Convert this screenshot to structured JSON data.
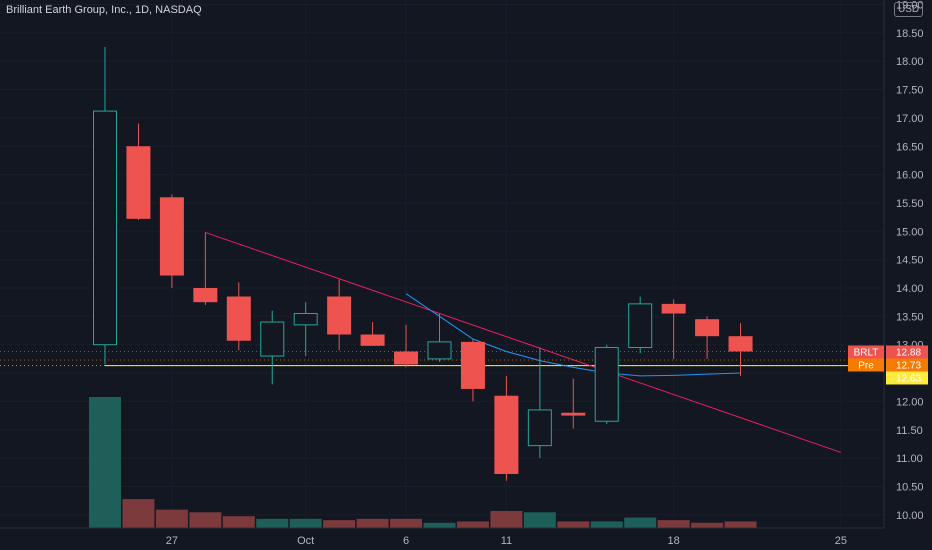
{
  "header": {
    "title": "Brilliant Earth Group, Inc., 1D, NASDAQ",
    "currency": "USD"
  },
  "colors": {
    "background": "#131722",
    "up": "#26a69a",
    "down": "#ef5350",
    "volume_up": "#1f5f5a",
    "volume_down": "#7d3a3d",
    "trendline": "#e91e63",
    "moving_average": "#2196f3",
    "horizontal_line": "#ffeb3b"
  },
  "chart_data": {
    "type": "candlestick",
    "symbol": "BRLT",
    "interval": "1D",
    "exchange": "NASDAQ",
    "ylim": [
      9.8,
      19.0
    ],
    "y_ticks": [
      "19.00",
      "18.50",
      "18.00",
      "17.50",
      "17.00",
      "16.50",
      "16.00",
      "15.50",
      "15.00",
      "14.50",
      "14.00",
      "13.50",
      "13.00",
      "12.50",
      "12.00",
      "11.50",
      "11.00",
      "10.50",
      "10.00"
    ],
    "x_ticks": [
      {
        "label": "27",
        "index": 2
      },
      {
        "label": "Oct",
        "index": 6
      },
      {
        "label": "6",
        "index": 9
      },
      {
        "label": "11",
        "index": 12
      },
      {
        "label": "18",
        "index": 17
      },
      {
        "label": "25",
        "index": 22
      }
    ],
    "candles": [
      {
        "index": 0,
        "open": 13.0,
        "high": 18.25,
        "low": 12.65,
        "close": 17.12
      },
      {
        "index": 1,
        "open": 16.5,
        "high": 16.9,
        "low": 15.2,
        "close": 15.22
      },
      {
        "index": 2,
        "open": 15.6,
        "high": 15.65,
        "low": 14.0,
        "close": 14.22
      },
      {
        "index": 3,
        "open": 14.0,
        "high": 14.98,
        "low": 13.7,
        "close": 13.75
      },
      {
        "index": 4,
        "open": 13.85,
        "high": 14.1,
        "low": 12.9,
        "close": 13.07
      },
      {
        "index": 5,
        "open": 12.8,
        "high": 13.6,
        "low": 12.3,
        "close": 13.4
      },
      {
        "index": 6,
        "open": 13.35,
        "high": 13.75,
        "low": 12.8,
        "close": 13.55
      },
      {
        "index": 7,
        "open": 13.85,
        "high": 14.15,
        "low": 12.9,
        "close": 13.18
      },
      {
        "index": 8,
        "open": 13.18,
        "high": 13.4,
        "low": 12.98,
        "close": 12.98
      },
      {
        "index": 9,
        "open": 12.88,
        "high": 13.35,
        "low": 12.6,
        "close": 12.65
      },
      {
        "index": 10,
        "open": 12.75,
        "high": 13.55,
        "low": 12.7,
        "close": 13.05
      },
      {
        "index": 11,
        "open": 13.05,
        "high": 13.1,
        "low": 12.0,
        "close": 12.22
      },
      {
        "index": 12,
        "open": 12.1,
        "high": 12.45,
        "low": 10.6,
        "close": 10.72
      },
      {
        "index": 13,
        "open": 11.22,
        "high": 12.95,
        "low": 11.0,
        "close": 11.85
      },
      {
        "index": 14,
        "open": 11.8,
        "high": 12.4,
        "low": 11.52,
        "close": 11.75
      },
      {
        "index": 15,
        "open": 11.65,
        "high": 13.0,
        "low": 11.6,
        "close": 12.95
      },
      {
        "index": 16,
        "open": 12.95,
        "high": 13.85,
        "low": 12.85,
        "close": 13.72
      },
      {
        "index": 17,
        "open": 13.72,
        "high": 13.8,
        "low": 12.75,
        "close": 13.55
      },
      {
        "index": 18,
        "open": 13.45,
        "high": 13.5,
        "low": 12.75,
        "close": 13.15
      },
      {
        "index": 19,
        "open": 13.15,
        "high": 13.38,
        "low": 12.45,
        "close": 12.88
      }
    ],
    "volume": [
      {
        "index": 0,
        "value": 100,
        "direction": "up"
      },
      {
        "index": 1,
        "value": 22,
        "direction": "down"
      },
      {
        "index": 2,
        "value": 14,
        "direction": "down"
      },
      {
        "index": 3,
        "value": 12,
        "direction": "down"
      },
      {
        "index": 4,
        "value": 9,
        "direction": "down"
      },
      {
        "index": 5,
        "value": 7,
        "direction": "up"
      },
      {
        "index": 6,
        "value": 7,
        "direction": "up"
      },
      {
        "index": 7,
        "value": 6,
        "direction": "down"
      },
      {
        "index": 8,
        "value": 7,
        "direction": "down"
      },
      {
        "index": 9,
        "value": 7,
        "direction": "down"
      },
      {
        "index": 10,
        "value": 4,
        "direction": "up"
      },
      {
        "index": 11,
        "value": 5,
        "direction": "down"
      },
      {
        "index": 12,
        "value": 13,
        "direction": "down"
      },
      {
        "index": 13,
        "value": 12,
        "direction": "up"
      },
      {
        "index": 14,
        "value": 5,
        "direction": "down"
      },
      {
        "index": 15,
        "value": 5,
        "direction": "up"
      },
      {
        "index": 16,
        "value": 8,
        "direction": "up"
      },
      {
        "index": 17,
        "value": 6,
        "direction": "down"
      },
      {
        "index": 18,
        "value": 4,
        "direction": "down"
      },
      {
        "index": 19,
        "value": 5,
        "direction": "down"
      }
    ],
    "trendline": {
      "from": {
        "index": 3,
        "price": 14.98
      },
      "to": {
        "index": 22,
        "price": 11.1
      }
    },
    "moving_average": [
      {
        "index": 9,
        "price": 13.9
      },
      {
        "index": 10,
        "price": 13.5
      },
      {
        "index": 11,
        "price": 13.1
      },
      {
        "index": 12,
        "price": 12.88
      },
      {
        "index": 13,
        "price": 12.72
      },
      {
        "index": 14,
        "price": 12.6
      },
      {
        "index": 15,
        "price": 12.5
      },
      {
        "index": 16,
        "price": 12.45
      },
      {
        "index": 17,
        "price": 12.46
      },
      {
        "index": 18,
        "price": 12.48
      },
      {
        "index": 19,
        "price": 12.5
      }
    ],
    "horizontal_line": {
      "from_index": 0,
      "price": 12.63
    },
    "price_tags": [
      {
        "label": "BRLT",
        "value": "12.88",
        "price": 12.88,
        "color": "#ef5350",
        "text_color": "#ffffff"
      },
      {
        "label": "Pre",
        "value": "12.73",
        "price": 12.73,
        "color": "#f57c00",
        "text_color": "#ffffff"
      },
      {
        "label": "",
        "value": "12.63",
        "price": 12.63,
        "color": "#ffeb3b",
        "text_color": "#131722"
      }
    ]
  }
}
